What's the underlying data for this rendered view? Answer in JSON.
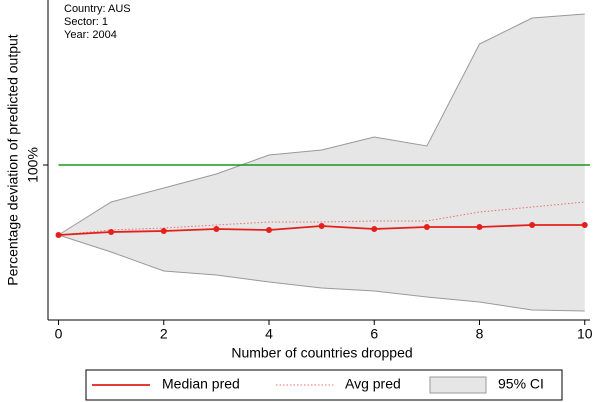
{
  "chart_data": {
    "type": "line",
    "annotations": [
      "Country: AUS",
      "Sector: 1",
      "Year: 2004"
    ],
    "x_label": "Number of countries dropped",
    "y_label": "Percentage deviation of predicted output",
    "x": [
      0,
      1,
      2,
      3,
      4,
      5,
      6,
      7,
      8,
      9,
      10
    ],
    "xlim": [
      -0.2,
      10.1
    ],
    "xticks": [
      0,
      2,
      4,
      6,
      8,
      10
    ],
    "ylim": [
      -55,
      265
    ],
    "yticks": [
      {
        "value": 100,
        "label": "100%"
      }
    ],
    "hline": 100,
    "hline_color": "#1a961a",
    "ci": {
      "name": "95% CI",
      "color": "#e6e6e6",
      "edge_color": "#999999",
      "upper": [
        30,
        63,
        77,
        91,
        110,
        115,
        128,
        119,
        221,
        247,
        251
      ],
      "lower": [
        30,
        13,
        -6,
        -10,
        -17,
        -23,
        -26,
        -32,
        -37,
        -45,
        -46
      ]
    },
    "series": [
      {
        "name": "Median pred",
        "color": "#e3201c",
        "style": "solid",
        "markers": true,
        "values": [
          30,
          33,
          34,
          36,
          35,
          39,
          36,
          38,
          38,
          40,
          40
        ]
      },
      {
        "name": "Avg pred",
        "color": "#e87070",
        "style": "dotted",
        "markers": false,
        "values": [
          30,
          35,
          37,
          40,
          43,
          43,
          44,
          44,
          53,
          58,
          63
        ]
      }
    ]
  }
}
